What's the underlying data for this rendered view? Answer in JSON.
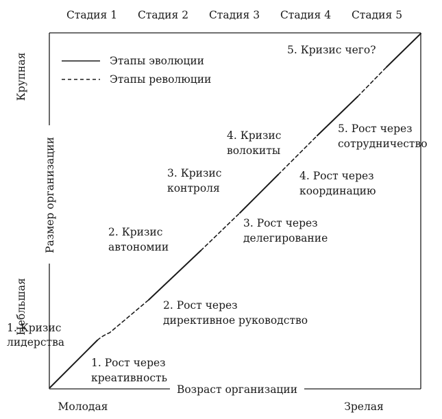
{
  "stages": [
    "Стадия 1",
    "Стадия 2",
    "Стадия 3",
    "Стадия 4",
    "Стадия 5"
  ],
  "axes": {
    "y_title": "Размер организации",
    "y_top": "Крупная",
    "y_bottom": "Небльшая",
    "x_title": "Возраст организации",
    "x_left": "Молодая",
    "x_right": "Зрелая"
  },
  "legend": {
    "evolution": "Этапы эволюции",
    "revolution": "Этапы революции"
  },
  "crises": [
    {
      "line1": "1. Кризис",
      "line2": "лидерства"
    },
    {
      "line1": "2. Кризис",
      "line2": "автономии"
    },
    {
      "line1": "3. Кризис",
      "line2": "контроля"
    },
    {
      "line1": "4. Кризис",
      "line2": "волокиты"
    },
    {
      "line1": "5. Кризис чего?",
      "line2": ""
    }
  ],
  "growth": [
    {
      "line1": "1. Рост через",
      "line2": "креативность"
    },
    {
      "line1": "2. Рост через",
      "line2": "директивное руководство"
    },
    {
      "line1": "3. Рост через",
      "line2": "делегирование"
    },
    {
      "line1": "4. Рост через",
      "line2": "координацию"
    },
    {
      "line1": "5. Рост через",
      "line2": "сотрудничество"
    }
  ],
  "colors": {
    "ink": "#1a1a1a",
    "background": "#ffffff"
  }
}
